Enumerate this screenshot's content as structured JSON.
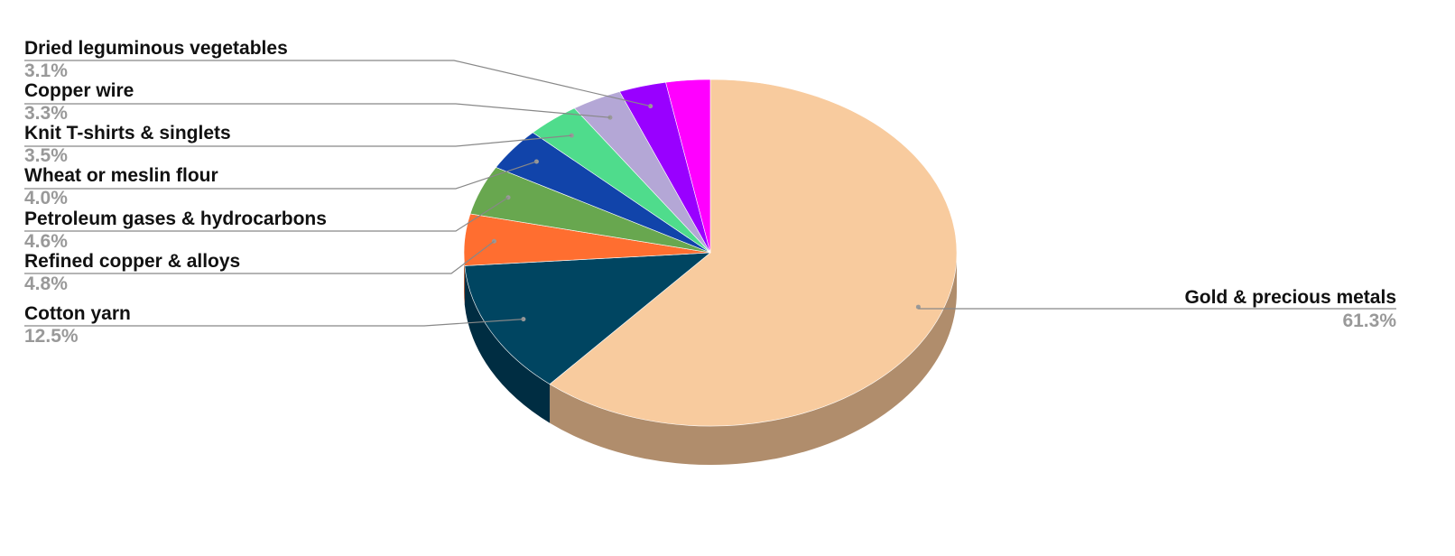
{
  "chart_data": {
    "type": "pie",
    "style": "3d",
    "title": "",
    "slices": [
      {
        "label": "Gold & precious metals",
        "value": 61.3,
        "pct_label": "61.3%",
        "color": "#f8cb9e",
        "side_color": "#b08d6c"
      },
      {
        "label": "Cotton yarn",
        "value": 12.5,
        "pct_label": "12.5%",
        "color": "#004561",
        "side_color": "#002d42"
      },
      {
        "label": "Refined copper & alloys",
        "value": 4.8,
        "pct_label": "4.8%",
        "color": "#ff6e30",
        "side_color": "#b04c20"
      },
      {
        "label": "Petroleum gases & hydrocarbons",
        "value": 4.6,
        "pct_label": "4.6%",
        "color": "#68a74f",
        "side_color": "#4a7738"
      },
      {
        "label": "Wheat or meslin flour",
        "value": 4.0,
        "pct_label": "4.0%",
        "color": "#1144aa",
        "side_color": "#0b2f77"
      },
      {
        "label": "Knit T-shirts & singlets",
        "value": 3.5,
        "pct_label": "3.5%",
        "color": "#4fdc8c",
        "side_color": "#379a62"
      },
      {
        "label": "Copper wire",
        "value": 3.3,
        "pct_label": "3.3%",
        "color": "#b4a7d6",
        "side_color": "#7e7596"
      },
      {
        "label": "Dried leguminous vegetables",
        "value": 3.1,
        "pct_label": "3.1%",
        "color": "#9900ff",
        "side_color": "#6b00b3"
      },
      {
        "label": "",
        "value": 2.9,
        "pct_label": "",
        "color": "#ff00ff",
        "side_color": "#b300b3"
      }
    ]
  }
}
